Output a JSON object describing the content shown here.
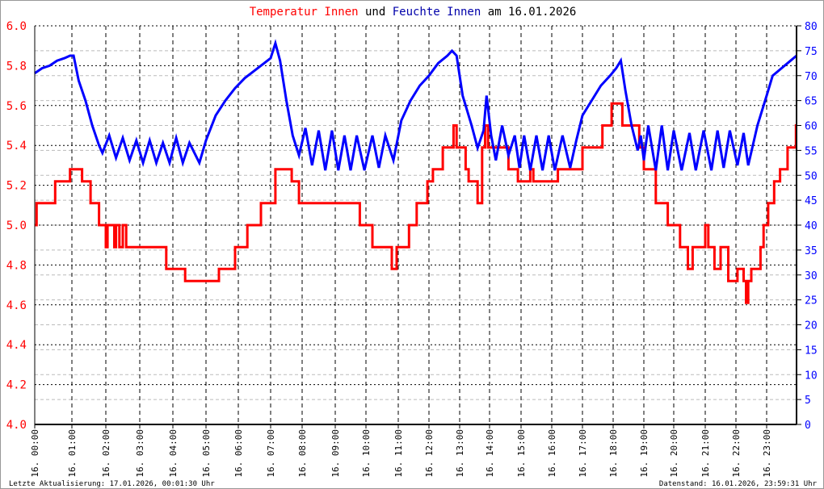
{
  "title": {
    "part1": "Temperatur Innen",
    "part2": "und",
    "part3": "Feuchte Innen",
    "part4": "am 16.01.2026"
  },
  "footer": {
    "left": "Letzte Aktualisierung: 17.01.2026, 00:01:30 Uhr",
    "right": "Datenstand: 16.01.2026, 23:59:31 Uhr"
  },
  "colors": {
    "temperature": "#ff0000",
    "humidity": "#0000ff",
    "grid_major": "#000000",
    "grid_minor": "#bbbbbb"
  },
  "chart_data": {
    "type": "line",
    "grid": true,
    "x_ticks": [
      "16. 00:00",
      "16. 01:00",
      "16. 02:00",
      "16. 03:00",
      "16. 04:00",
      "16. 05:00",
      "16. 06:00",
      "16. 07:00",
      "16. 08:00",
      "16. 09:00",
      "16. 10:00",
      "16. 11:00",
      "16. 12:00",
      "16. 13:00",
      "16. 14:00",
      "16. 15:00",
      "16. 16:00",
      "16. 17:00",
      "16. 18:00",
      "16. 19:00",
      "16. 20:00",
      "16. 21:00",
      "16. 22:00",
      "16. 23:00"
    ],
    "y_left": {
      "ylim": [
        4.0,
        6.0
      ],
      "ticks": [
        "4.0",
        "4.2",
        "4.4",
        "4.6",
        "4.8",
        "5.0",
        "5.2",
        "5.4",
        "5.6",
        "5.8",
        "6.0"
      ]
    },
    "y_right": {
      "ylim": [
        0,
        80
      ],
      "ticks": [
        "0",
        "5",
        "10",
        "15",
        "20",
        "25",
        "30",
        "35",
        "40",
        "45",
        "50",
        "55",
        "60",
        "65",
        "70",
        "75",
        "80"
      ]
    },
    "series": [
      {
        "name": "Temperatur Innen",
        "axis": "left",
        "step": true,
        "points": [
          [
            0,
            5.0
          ],
          [
            0.05,
            5.11
          ],
          [
            0.55,
            5.22
          ],
          [
            0.95,
            5.28
          ],
          [
            1.3,
            5.22
          ],
          [
            1.55,
            5.11
          ],
          [
            1.8,
            5.0
          ],
          [
            2.0,
            4.89
          ],
          [
            2.05,
            5.0
          ],
          [
            2.25,
            4.89
          ],
          [
            2.3,
            5.0
          ],
          [
            2.4,
            4.89
          ],
          [
            2.5,
            5.0
          ],
          [
            2.6,
            4.89
          ],
          [
            3.8,
            4.78
          ],
          [
            4.37,
            4.72
          ],
          [
            5.4,
            4.78
          ],
          [
            5.9,
            4.89
          ],
          [
            6.28,
            5.0
          ],
          [
            6.7,
            5.11
          ],
          [
            7.15,
            5.28
          ],
          [
            7.67,
            5.22
          ],
          [
            7.9,
            5.11
          ],
          [
            9.8,
            5.0
          ],
          [
            10.2,
            4.89
          ],
          [
            10.8,
            4.78
          ],
          [
            10.95,
            4.89
          ],
          [
            11.35,
            5.0
          ],
          [
            11.6,
            5.11
          ],
          [
            11.95,
            5.22
          ],
          [
            12.13,
            5.28
          ],
          [
            12.45,
            5.39
          ],
          [
            12.8,
            5.5
          ],
          [
            12.9,
            5.39
          ],
          [
            13.2,
            5.28
          ],
          [
            13.3,
            5.22
          ],
          [
            13.6,
            5.11
          ],
          [
            13.75,
            5.39
          ],
          [
            13.85,
            5.5
          ],
          [
            13.95,
            5.39
          ],
          [
            14.6,
            5.28
          ],
          [
            14.9,
            5.22
          ],
          [
            15.3,
            5.28
          ],
          [
            15.4,
            5.22
          ],
          [
            16.2,
            5.28
          ],
          [
            17.0,
            5.39
          ],
          [
            17.65,
            5.5
          ],
          [
            17.95,
            5.61
          ],
          [
            18.3,
            5.5
          ],
          [
            18.85,
            5.39
          ],
          [
            19.0,
            5.28
          ],
          [
            19.4,
            5.11
          ],
          [
            19.8,
            5.0
          ],
          [
            20.2,
            4.89
          ],
          [
            20.45,
            4.78
          ],
          [
            20.6,
            4.89
          ],
          [
            21.0,
            5.0
          ],
          [
            21.1,
            4.89
          ],
          [
            21.3,
            4.78
          ],
          [
            21.5,
            4.89
          ],
          [
            21.75,
            4.72
          ],
          [
            22.05,
            4.78
          ],
          [
            22.25,
            4.72
          ],
          [
            22.33,
            4.61
          ],
          [
            22.4,
            4.72
          ],
          [
            22.5,
            4.78
          ],
          [
            22.8,
            4.89
          ],
          [
            22.9,
            5.0
          ],
          [
            23.05,
            5.11
          ],
          [
            23.25,
            5.22
          ],
          [
            23.45,
            5.28
          ],
          [
            23.7,
            5.39
          ],
          [
            23.98,
            5.5
          ],
          [
            24,
            5.5
          ]
        ]
      },
      {
        "name": "Feuchte Innen",
        "axis": "right",
        "step": false,
        "points": [
          [
            0,
            70.5
          ],
          [
            0.2,
            71.5
          ],
          [
            0.4,
            72
          ],
          [
            0.6,
            73
          ],
          [
            0.8,
            73.5
          ],
          [
            0.95,
            74
          ],
          [
            1.05,
            74
          ],
          [
            1.2,
            69
          ],
          [
            1.4,
            65
          ],
          [
            1.6,
            60
          ],
          [
            1.8,
            56
          ],
          [
            1.9,
            54.5
          ],
          [
            2.1,
            58
          ],
          [
            2.3,
            53.5
          ],
          [
            2.5,
            57.5
          ],
          [
            2.7,
            53
          ],
          [
            2.9,
            57
          ],
          [
            3.1,
            52.5
          ],
          [
            3.3,
            57
          ],
          [
            3.5,
            52.5
          ],
          [
            3.7,
            56.5
          ],
          [
            3.9,
            52.5
          ],
          [
            4.1,
            57.5
          ],
          [
            4.3,
            52.5
          ],
          [
            4.5,
            56.5
          ],
          [
            4.8,
            52.5
          ],
          [
            5.0,
            57
          ],
          [
            5.3,
            62
          ],
          [
            5.6,
            65
          ],
          [
            5.9,
            67.5
          ],
          [
            6.2,
            69.5
          ],
          [
            6.5,
            71
          ],
          [
            6.8,
            72.5
          ],
          [
            7.0,
            73.5
          ],
          [
            7.15,
            76.5
          ],
          [
            7.3,
            73
          ],
          [
            7.5,
            65
          ],
          [
            7.7,
            58
          ],
          [
            7.9,
            54
          ],
          [
            8.1,
            59.5
          ],
          [
            8.3,
            52
          ],
          [
            8.5,
            59
          ],
          [
            8.7,
            51
          ],
          [
            8.9,
            59
          ],
          [
            9.1,
            51
          ],
          [
            9.3,
            58
          ],
          [
            9.5,
            51
          ],
          [
            9.7,
            58
          ],
          [
            9.95,
            51
          ],
          [
            10.2,
            58
          ],
          [
            10.4,
            51.5
          ],
          [
            10.6,
            58
          ],
          [
            10.85,
            53
          ],
          [
            11.1,
            61
          ],
          [
            11.4,
            65
          ],
          [
            11.7,
            68
          ],
          [
            12.0,
            70
          ],
          [
            12.3,
            72.5
          ],
          [
            12.6,
            74
          ],
          [
            12.75,
            75
          ],
          [
            12.9,
            74
          ],
          [
            13.1,
            66
          ],
          [
            13.4,
            60
          ],
          [
            13.6,
            55.5
          ],
          [
            13.8,
            59
          ],
          [
            13.9,
            66
          ],
          [
            14.05,
            58
          ],
          [
            14.2,
            53
          ],
          [
            14.4,
            60
          ],
          [
            14.6,
            54
          ],
          [
            14.8,
            58
          ],
          [
            14.95,
            51.5
          ],
          [
            15.1,
            58
          ],
          [
            15.3,
            51
          ],
          [
            15.5,
            58
          ],
          [
            15.7,
            51
          ],
          [
            15.9,
            58
          ],
          [
            16.1,
            51
          ],
          [
            16.35,
            58
          ],
          [
            16.6,
            51.5
          ],
          [
            16.8,
            57
          ],
          [
            17.0,
            62
          ],
          [
            17.3,
            65
          ],
          [
            17.6,
            68
          ],
          [
            17.9,
            70
          ],
          [
            18.1,
            71.5
          ],
          [
            18.25,
            73
          ],
          [
            18.4,
            67
          ],
          [
            18.6,
            60
          ],
          [
            18.8,
            55
          ],
          [
            18.9,
            58
          ],
          [
            19.0,
            53
          ],
          [
            19.15,
            60
          ],
          [
            19.4,
            51
          ],
          [
            19.6,
            60
          ],
          [
            19.8,
            51
          ],
          [
            20.0,
            59
          ],
          [
            20.25,
            51
          ],
          [
            20.5,
            58.5
          ],
          [
            20.7,
            51
          ],
          [
            20.95,
            59
          ],
          [
            21.2,
            51
          ],
          [
            21.4,
            59
          ],
          [
            21.6,
            51.5
          ],
          [
            21.8,
            59
          ],
          [
            22.05,
            52
          ],
          [
            22.25,
            58.5
          ],
          [
            22.4,
            52
          ],
          [
            22.7,
            60
          ],
          [
            23.0,
            66
          ],
          [
            23.2,
            70
          ],
          [
            23.5,
            71.5
          ],
          [
            23.8,
            73
          ],
          [
            24,
            74
          ]
        ]
      }
    ]
  }
}
